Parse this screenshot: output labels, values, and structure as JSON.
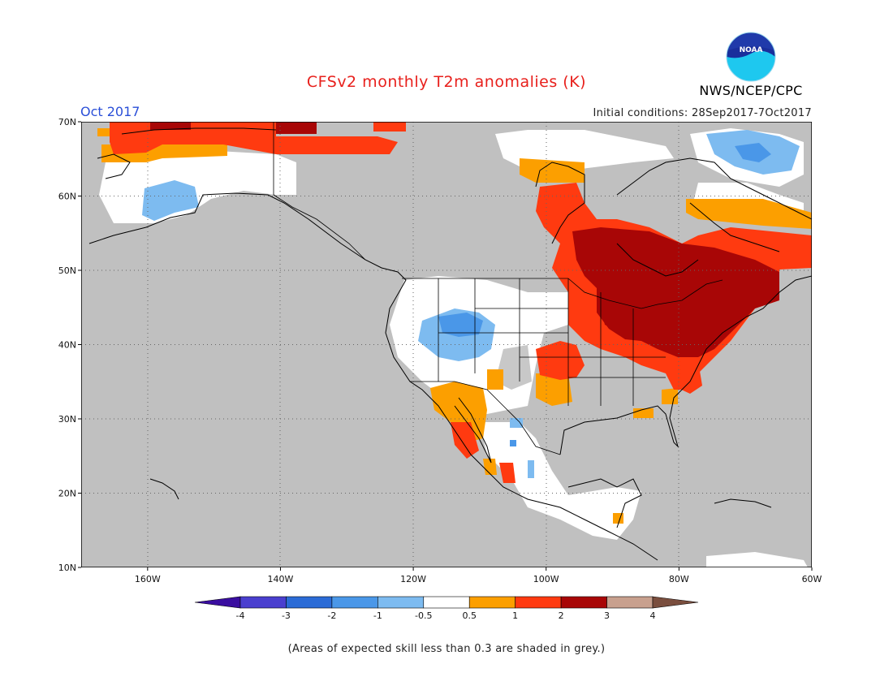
{
  "title": "CFSv2 monthly T2m anomalies (K)",
  "month": "Oct 2017",
  "initial_conditions": "Initial conditions: 28Sep2017-7Oct2017",
  "agency": "NWS/NCEP/CPC",
  "logo_text": "NOAA",
  "footer": "(Areas of expected skill less than 0.3 are shaded in grey.)",
  "map": {
    "lon_range": [
      -170,
      -60
    ],
    "lat_range": [
      10,
      70
    ],
    "lat_ticks": [
      {
        "v": 70,
        "label": "70N"
      },
      {
        "v": 60,
        "label": "60N"
      },
      {
        "v": 50,
        "label": "50N"
      },
      {
        "v": 40,
        "label": "40N"
      },
      {
        "v": 30,
        "label": "30N"
      },
      {
        "v": 20,
        "label": "20N"
      },
      {
        "v": 10,
        "label": "10N"
      }
    ],
    "lon_ticks": [
      {
        "v": -160,
        "label": "160W"
      },
      {
        "v": -140,
        "label": "140W"
      },
      {
        "v": -120,
        "label": "120W"
      },
      {
        "v": -100,
        "label": "100W"
      },
      {
        "v": -80,
        "label": "80W"
      },
      {
        "v": -60,
        "label": "60W"
      }
    ],
    "grid": "dotted",
    "skill_mask_color": "#c0c0c0"
  },
  "colorbar": {
    "colors": [
      "#3a0ea0",
      "#4a3fcf",
      "#2b6bd6",
      "#4a97e8",
      "#7dbbf0",
      "#ffffff",
      "#fc9f00",
      "#ff3a10",
      "#a80606",
      "#c8a08e",
      "#7a4e3e"
    ],
    "tick_labels": [
      "-4",
      "-3",
      "-2",
      "-1",
      "-0.5",
      "0.5",
      "1",
      "2",
      "3",
      "4"
    ]
  },
  "anomaly_regions": [
    {
      "name": "northern-alaska-warm",
      "class": "1 to 2",
      "lon": [
        -165,
        -138
      ],
      "lat": [
        64,
        70
      ],
      "color": "#ff3a10"
    },
    {
      "name": "alaska-north-slope-3k",
      "class": "2 to 3",
      "lon": [
        -160,
        -154
      ],
      "lat": [
        69,
        70
      ],
      "color": "#a80606"
    },
    {
      "name": "southwest-alaska-cool",
      "class": "-1 to -0.5",
      "lon": [
        -159,
        -152
      ],
      "lat": [
        58,
        61
      ],
      "color": "#7dbbf0"
    },
    {
      "name": "hudson-bay-west-warm",
      "class": "1 to 2",
      "lon": [
        -96,
        -88
      ],
      "lat": [
        52,
        61
      ],
      "color": "#ff3a10"
    },
    {
      "name": "eastern-canada-3k",
      "class": "2 to 3",
      "lon": [
        -96,
        -70
      ],
      "lat": [
        42,
        54
      ],
      "color": "#a80606"
    },
    {
      "name": "labrador-warm",
      "class": "1 to 2",
      "lon": [
        -78,
        -60
      ],
      "lat": [
        51,
        58
      ],
      "color": "#ff3a10"
    },
    {
      "name": "baffin-cool",
      "class": "-1 to -0.5",
      "lon": [
        -72,
        -62
      ],
      "lat": [
        65,
        70
      ],
      "color": "#7dbbf0"
    },
    {
      "name": "us-southwest-cool",
      "class": "-1 to -0.5",
      "lon": [
        -118,
        -109
      ],
      "lat": [
        38,
        42
      ],
      "color": "#7dbbf0"
    },
    {
      "name": "southern-plains-warm",
      "class": "1 to 2",
      "lon": [
        -103,
        -95
      ],
      "lat": [
        35,
        40
      ],
      "color": "#ff3a10"
    },
    {
      "name": "mexico-nw-warm",
      "class": "0.5 to 1",
      "lon": [
        -116,
        -107
      ],
      "lat": [
        26,
        33
      ],
      "color": "#fc9f00"
    }
  ]
}
